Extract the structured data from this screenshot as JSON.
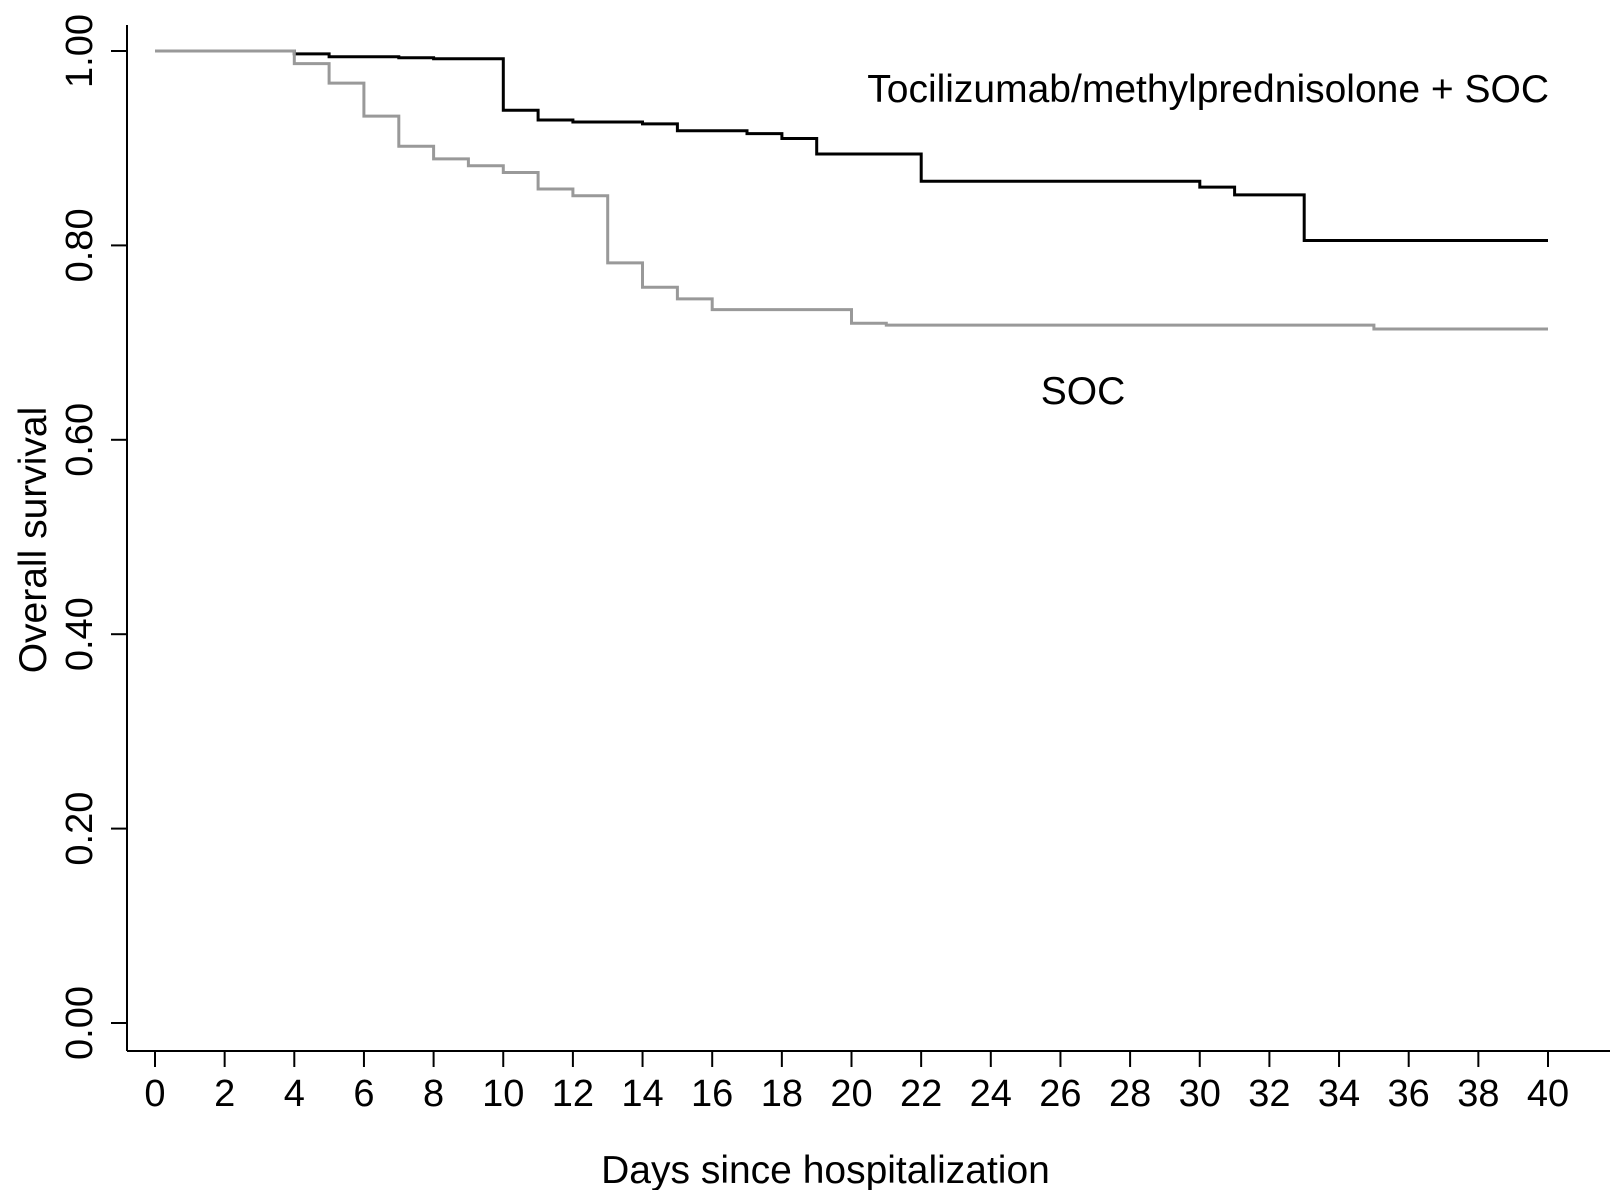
{
  "chart_data": {
    "type": "line",
    "xlabel": "Days since hospitalization",
    "ylabel": "Overall survival",
    "xlim": [
      0,
      40
    ],
    "ylim": [
      0,
      1
    ],
    "x_ticks": [
      0,
      2,
      4,
      6,
      8,
      10,
      12,
      14,
      16,
      18,
      20,
      22,
      24,
      26,
      28,
      30,
      32,
      34,
      36,
      38,
      40
    ],
    "x_tick_labels": [
      "0",
      "2",
      "4",
      "6",
      "8",
      "10",
      "12",
      "14",
      "16",
      "18",
      "20",
      "22",
      "24",
      "26",
      "28",
      "30",
      "32",
      "34",
      "36",
      "38",
      "40"
    ],
    "y_ticks": [
      0,
      0.2,
      0.4,
      0.6,
      0.8,
      1.0
    ],
    "y_tick_labels": [
      "0.00",
      "0.20",
      "0.40",
      "0.60",
      "0.80",
      "1.00"
    ],
    "grid": false,
    "legend": "none",
    "step": true,
    "series": [
      {
        "name": "Tocilizumab/methylprednisolone + SOC",
        "color": "#000000",
        "x": [
          0,
          4,
          5,
          7,
          8,
          10,
          11,
          12,
          14,
          15,
          17,
          18,
          19,
          22,
          30,
          31,
          33,
          40
        ],
        "y": [
          1.0,
          0.997,
          0.994,
          0.993,
          0.992,
          0.939,
          0.929,
          0.927,
          0.925,
          0.918,
          0.915,
          0.91,
          0.894,
          0.866,
          0.86,
          0.852,
          0.805,
          0.805
        ]
      },
      {
        "name": "SOC",
        "color": "#999999",
        "x": [
          0,
          4,
          5,
          6,
          7,
          8,
          9,
          10,
          11,
          12,
          13,
          14,
          15,
          16,
          20,
          21,
          35,
          40
        ],
        "y": [
          1.0,
          0.987,
          0.967,
          0.933,
          0.902,
          0.889,
          0.882,
          0.875,
          0.858,
          0.851,
          0.782,
          0.757,
          0.745,
          0.734,
          0.72,
          0.718,
          0.714,
          0.714
        ]
      }
    ]
  }
}
